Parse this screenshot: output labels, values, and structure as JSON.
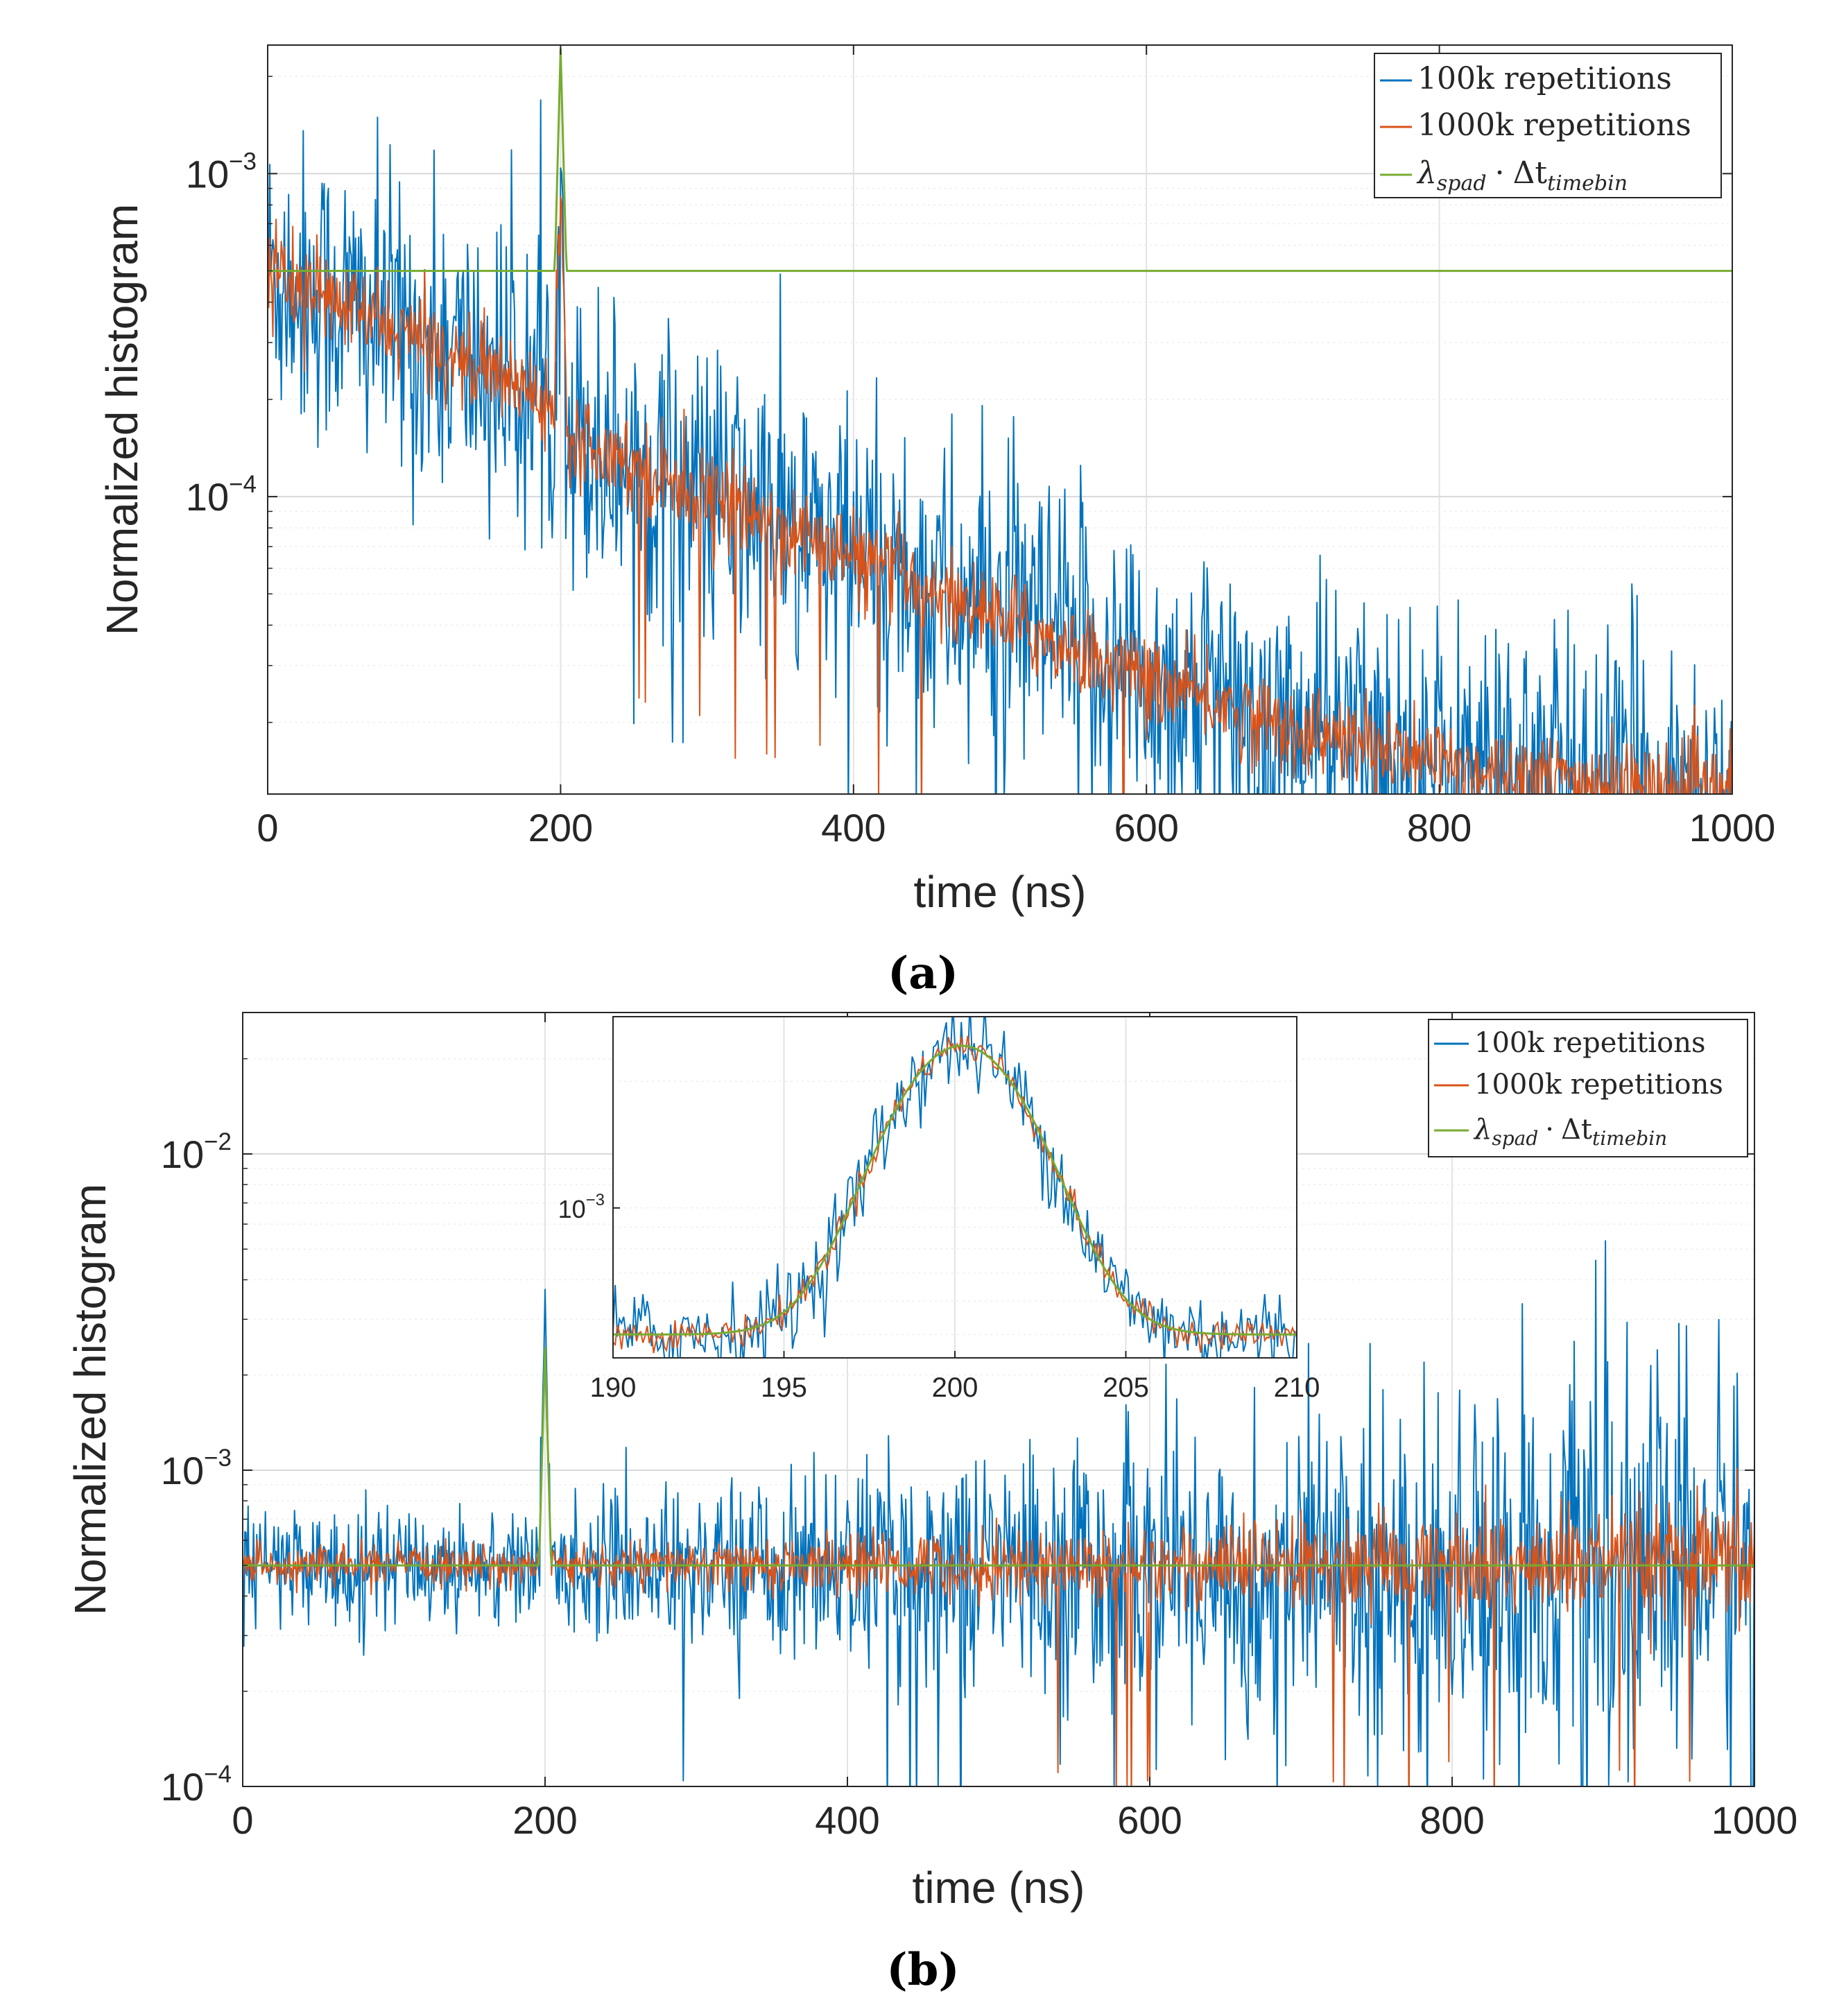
{
  "chart_data": [
    {
      "type": "line",
      "panel_label": "(a)",
      "xlabel": "time (ns)",
      "ylabel": "Normalized histogram",
      "xscale": "linear",
      "yscale": "log",
      "xlim": [
        0,
        1000
      ],
      "ylim": [
        1.2e-05,
        0.0025
      ],
      "xticks": [
        0,
        200,
        400,
        600,
        800,
        1000
      ],
      "xtick_labels": [
        "0",
        "200",
        "400",
        "600",
        "800",
        "1000"
      ],
      "yticks": [
        {
          "value": 0.001,
          "base": "10",
          "exp": "−3"
        },
        {
          "value": 0.0001,
          "base": "10",
          "exp": "−4"
        }
      ],
      "grid": true,
      "legend_position": "top-right",
      "series": [
        {
          "name": "100k repetitions",
          "color": "#0072BD",
          "noise": 0.55,
          "data": [
            [
              0,
              0.0005
            ],
            [
              100,
              0.00031
            ],
            [
              195,
              0.0002
            ],
            [
              200,
              0.00099
            ],
            [
              205,
              0.00016
            ],
            [
              300,
              0.0001
            ],
            [
              400,
              6.5e-05
            ],
            [
              500,
              4.2e-05
            ],
            [
              600,
              2.7e-05
            ],
            [
              700,
              1.9e-05
            ],
            [
              800,
              1.5e-05
            ],
            [
              900,
              1.3e-05
            ],
            [
              1000,
              1.2e-05
            ]
          ]
        },
        {
          "name": "1000k repetitions",
          "color": "#D95319",
          "noise": 0.16,
          "data": [
            [
              0,
              0.0005
            ],
            [
              100,
              0.00031
            ],
            [
              195,
              0.0002
            ],
            [
              200,
              0.00083
            ],
            [
              205,
              0.00016
            ],
            [
              300,
              0.0001
            ],
            [
              400,
              6.5e-05
            ],
            [
              500,
              4.2e-05
            ],
            [
              600,
              2.7e-05
            ],
            [
              700,
              1.9e-05
            ],
            [
              800,
              1.5e-05
            ],
            [
              900,
              1.3e-05
            ],
            [
              1000,
              1.2e-05
            ]
          ]
        },
        {
          "name": "λ_spad · Δt_timebin",
          "color": "#77AC30",
          "noise": 0,
          "data": [
            [
              0,
              0.0005
            ],
            [
              196,
              0.0005
            ],
            [
              200,
              0.00243
            ],
            [
              204,
              0.0005
            ],
            [
              1000,
              0.0005
            ]
          ]
        }
      ]
    },
    {
      "type": "line",
      "panel_label": "(b)",
      "xlabel": "time (ns)",
      "ylabel": "Normalized histogram",
      "xscale": "linear",
      "yscale": "log",
      "xlim": [
        0,
        1000
      ],
      "ylim": [
        0.0001,
        0.028
      ],
      "xticks": [
        0,
        200,
        400,
        600,
        800,
        1000
      ],
      "xtick_labels": [
        "0",
        "200",
        "400",
        "600",
        "800",
        "1000"
      ],
      "yticks": [
        {
          "value": 0.01,
          "base": "10",
          "exp": "−2"
        },
        {
          "value": 0.001,
          "base": "10",
          "exp": "−3"
        },
        {
          "value": 0.0001,
          "base": "10",
          "exp": "−4"
        }
      ],
      "grid": true,
      "legend_position": "top-right",
      "series": [
        {
          "name": "100k repetitions",
          "color": "#0072BD",
          "noise": 0.22,
          "noise_growth": 0.9,
          "data": [
            [
              0,
              0.0005
            ],
            [
              196,
              0.0005
            ],
            [
              200,
              0.0029
            ],
            [
              204,
              0.0005
            ],
            [
              1000,
              0.0005
            ]
          ]
        },
        {
          "name": "1000k repetitions",
          "color": "#D95319",
          "noise": 0.07,
          "noise_growth": 0.75,
          "data": [
            [
              0,
              0.0005
            ],
            [
              196,
              0.0005
            ],
            [
              200,
              0.0024
            ],
            [
              204,
              0.0005
            ],
            [
              1000,
              0.0005
            ]
          ]
        },
        {
          "name": "λ_spad · Δt_timebin",
          "color": "#77AC30",
          "noise": 0,
          "data": [
            [
              0,
              0.0005
            ],
            [
              196,
              0.0005
            ],
            [
              200,
              0.00243
            ],
            [
              204,
              0.0005
            ],
            [
              1000,
              0.0005
            ]
          ]
        }
      ],
      "inset": {
        "xlim": [
          190,
          210
        ],
        "ylim": [
          0.00044,
          0.00285
        ],
        "xticks": [
          190,
          195,
          200,
          205,
          210
        ],
        "xtick_labels": [
          "190",
          "195",
          "200",
          "205",
          "210"
        ],
        "ytick": {
          "value": 0.001,
          "base": "10",
          "exp": "−3"
        },
        "gaussian": {
          "center": 200.2,
          "sigma": 2.0,
          "baseline": 0.0005,
          "peak": 0.00243
        }
      }
    }
  ],
  "legend": {
    "entries": [
      "100k repetitions",
      "1000k repetitions",
      "λ_spad · Δt_timebin"
    ],
    "lambda": "λ",
    "spad": "spad",
    "dot": "·",
    "delta_t": "Δt",
    "timebin": "timebin"
  }
}
